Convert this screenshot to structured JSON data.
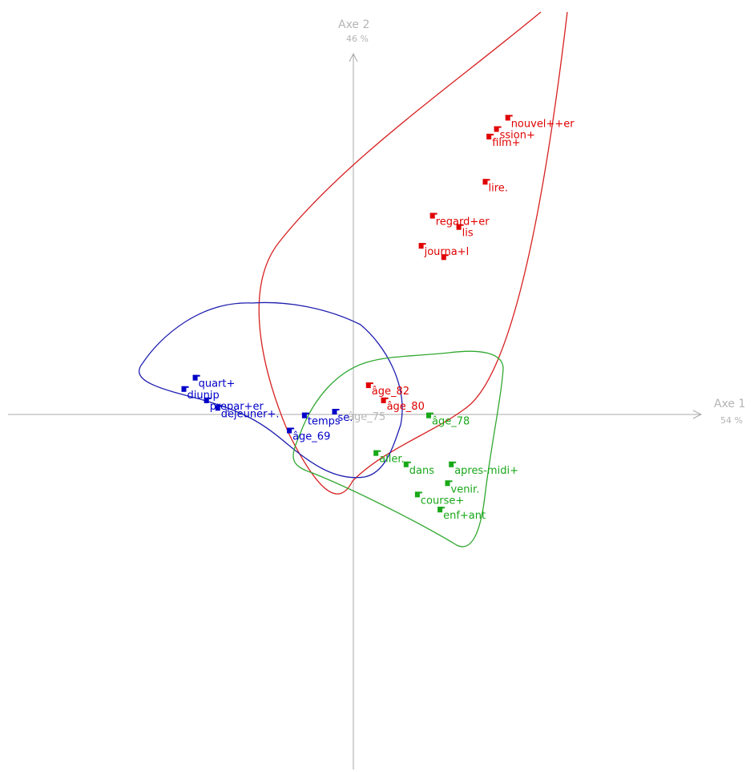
{
  "chart_data": {
    "type": "scatter",
    "title": "",
    "axes": {
      "x": {
        "label": "Axe 1",
        "inertia": "54 %"
      },
      "y": {
        "label": "Axe 2",
        "inertia": "46 %"
      },
      "xlim": [
        -1.0,
        1.0
      ],
      "ylim": [
        -1.0,
        1.0
      ],
      "grid": false
    },
    "series": [
      {
        "color": "#e00000",
        "points": [
          {
            "label": "nouvel++er",
            "x": 0.41,
            "y": 0.78
          },
          {
            "label": "ssion+",
            "x": 0.38,
            "y": 0.75
          },
          {
            "label": "film+",
            "x": 0.36,
            "y": 0.73
          },
          {
            "label": "lire.",
            "x": 0.35,
            "y": 0.61
          },
          {
            "label": "regard+er",
            "x": 0.21,
            "y": 0.52
          },
          {
            "label": "lis",
            "x": 0.28,
            "y": 0.49
          },
          {
            "label": "journa+l",
            "x": 0.18,
            "y": 0.44
          },
          {
            "label": "",
            "x": 0.24,
            "y": 0.41
          },
          {
            "label": "âge_82",
            "x": 0.04,
            "y": 0.07
          },
          {
            "label": "âge_80",
            "x": 0.08,
            "y": 0.03
          }
        ]
      },
      {
        "color": "#0000c8",
        "points": [
          {
            "label": "quart+",
            "x": -0.42,
            "y": 0.09
          },
          {
            "label": "diunip",
            "x": -0.45,
            "y": 0.06
          },
          {
            "label": "prepar+er",
            "x": -0.39,
            "y": 0.03
          },
          {
            "label": "dejeuner+.",
            "x": -0.36,
            "y": 0.01
          },
          {
            "label": "temps",
            "x": -0.13,
            "y": -0.01
          },
          {
            "label": "se.",
            "x": -0.05,
            "y": 0.0
          },
          {
            "label": "âge_69",
            "x": -0.17,
            "y": -0.05
          }
        ]
      },
      {
        "color": "#18a818",
        "points": [
          {
            "label": "âge_78",
            "x": 0.2,
            "y": -0.01
          },
          {
            "label": "aller.",
            "x": 0.06,
            "y": -0.11
          },
          {
            "label": "dans",
            "x": 0.14,
            "y": -0.14
          },
          {
            "label": "apres-midi+",
            "x": 0.26,
            "y": -0.14
          },
          {
            "label": "venir.",
            "x": 0.25,
            "y": -0.19
          },
          {
            "label": "course+",
            "x": 0.17,
            "y": -0.22
          },
          {
            "label": "enf+ant",
            "x": 0.23,
            "y": -0.26
          }
        ]
      }
    ],
    "supplementary_label": "âge_75"
  }
}
